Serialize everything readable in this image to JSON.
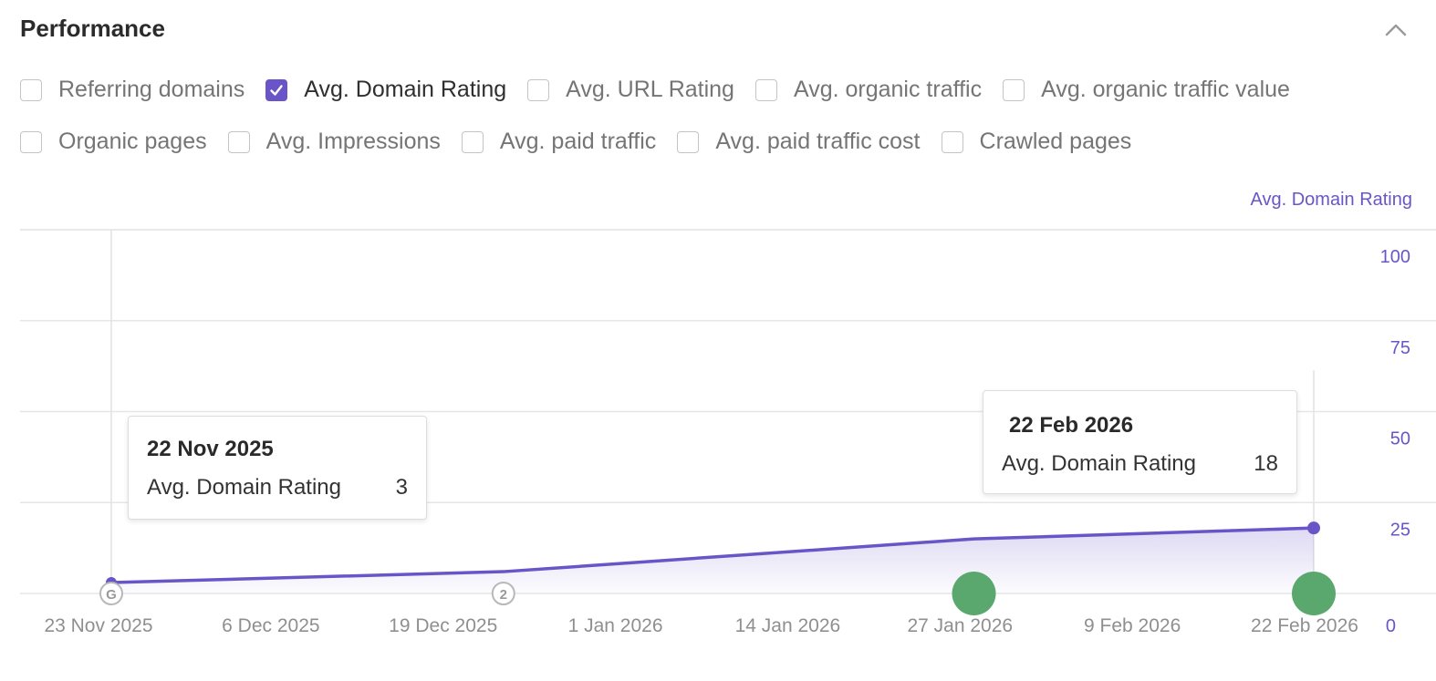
{
  "header": {
    "title": "Performance",
    "collapse_icon": "chevron-up-icon"
  },
  "metrics": [
    {
      "label": "Referring domains",
      "checked": false
    },
    {
      "label": "Avg. Domain Rating",
      "checked": true
    },
    {
      "label": "Avg. URL Rating",
      "checked": false
    },
    {
      "label": "Avg. organic traffic",
      "checked": false
    },
    {
      "label": "Avg. organic traffic value",
      "checked": false
    },
    {
      "label": "Organic pages",
      "checked": false
    },
    {
      "label": "Avg. Impressions",
      "checked": false
    },
    {
      "label": "Avg. paid traffic",
      "checked": false
    },
    {
      "label": "Avg. paid traffic cost",
      "checked": false
    },
    {
      "label": "Crawled pages",
      "checked": false
    }
  ],
  "colors": {
    "accent": "#6a55c8",
    "event_marker": "#5aa86e"
  },
  "chart_data": {
    "type": "area",
    "ylabel": "Avg. Domain Rating",
    "ylim": [
      0,
      100
    ],
    "yticks": [
      0,
      25,
      50,
      75,
      100
    ],
    "x_start": "22 Nov 2025",
    "x_end": "22 Feb 2026",
    "xticks": [
      "23 Nov 2025",
      "6 Dec 2025",
      "19 Dec 2025",
      "1 Jan 2026",
      "14 Jan 2026",
      "27 Jan 2026",
      "9 Feb 2026",
      "22 Feb 2026"
    ],
    "series": [
      {
        "name": "Avg. Domain Rating",
        "x": [
          "22 Nov 2025",
          "22 Dec 2025",
          "27 Jan 2026",
          "22 Feb 2026"
        ],
        "values": [
          3,
          6,
          15,
          18
        ]
      }
    ],
    "annotations": [
      {
        "date": "22 Nov 2025",
        "label": "G",
        "kind": "circle"
      },
      {
        "date": "22 Dec 2025",
        "label": "2",
        "kind": "circle"
      },
      {
        "date": "27 Jan 2026",
        "label": "",
        "kind": "event"
      },
      {
        "date": "22 Feb 2026",
        "label": "",
        "kind": "event"
      }
    ],
    "tooltips": [
      {
        "date": "22 Nov 2025",
        "metric": "Avg. Domain Rating",
        "value": "3"
      },
      {
        "date": "22 Feb 2026",
        "metric": "Avg. Domain Rating",
        "value": "18"
      }
    ]
  }
}
